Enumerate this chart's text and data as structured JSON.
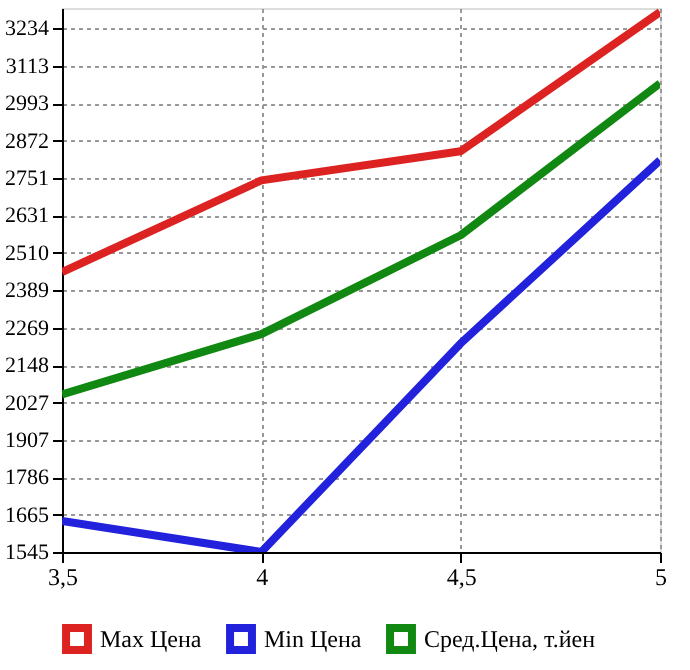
{
  "chart_data": {
    "type": "line",
    "x": [
      3.5,
      4,
      4.5,
      5
    ],
    "series": [
      {
        "name": "Max Цена",
        "color": "#dd2222",
        "values": [
          2448,
          2744,
          2838,
          3287
        ]
      },
      {
        "name": "Min Цена",
        "color": "#2222dd",
        "values": [
          1645,
          1545,
          2218,
          2809
        ]
      },
      {
        "name": "Сред.Цена, т.йен",
        "color": "#118811",
        "values": [
          2053,
          2248,
          2567,
          3057
        ]
      }
    ],
    "xlim": [
      3.5,
      5
    ],
    "xticks": [
      {
        "value": 3.5,
        "label": "3,5"
      },
      4,
      {
        "value": 4.5,
        "label": "4,5"
      },
      5
    ],
    "ylim": [
      1545,
      3300
    ],
    "yticks": [
      1545,
      1665,
      1786,
      1907,
      2027,
      2148,
      2269,
      2389,
      2510,
      2631,
      2751,
      2872,
      2993,
      3113,
      3234
    ],
    "grid": true,
    "legend": "bottom",
    "marker": "none",
    "line_style": "solid"
  }
}
